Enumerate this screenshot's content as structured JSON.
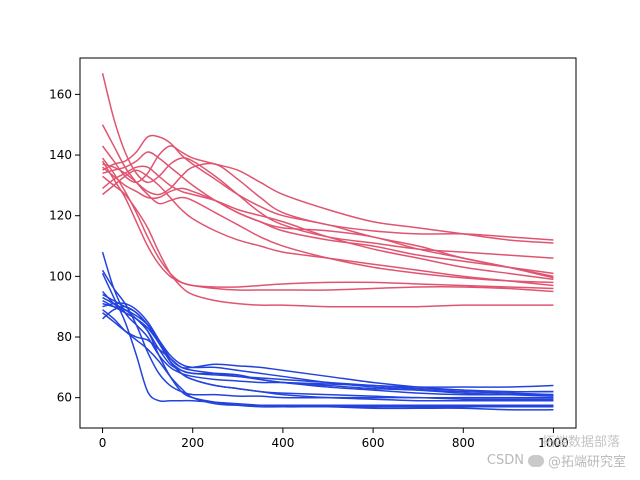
{
  "watermark": {
    "csdn": "CSDN",
    "account": "@拓端研究室",
    "wechat_name": "拓端数据部落",
    "icon": "wechat-icon"
  },
  "chart_data": {
    "type": "line",
    "title": "",
    "xlabel": "",
    "ylabel": "",
    "xlim": [
      -50,
      1050
    ],
    "ylim": [
      50,
      172
    ],
    "xticks": [
      0,
      200,
      400,
      600,
      800,
      1000
    ],
    "yticks": [
      60,
      80,
      100,
      120,
      140,
      160
    ],
    "grid": false,
    "legend": "none",
    "colors": {
      "group_a": "#e05470",
      "group_b": "#2343dc"
    },
    "x": [
      0,
      25,
      50,
      75,
      100,
      125,
      150,
      175,
      200,
      250,
      300,
      350,
      400,
      500,
      600,
      700,
      800,
      900,
      1000
    ],
    "series": [
      {
        "group": "group_a",
        "values": [
          167,
          152,
          141,
          134,
          131,
          133,
          137,
          139,
          138,
          133,
          127,
          121,
          117,
          113,
          111,
          109,
          108,
          107,
          106
        ]
      },
      {
        "group": "group_a",
        "values": [
          150,
          143,
          136,
          131,
          127,
          124,
          125,
          126,
          125,
          121,
          117,
          113,
          110,
          106,
          103,
          101,
          99.5,
          98.5,
          98
        ]
      },
      {
        "group": "group_a",
        "values": [
          143,
          138,
          133,
          131,
          134,
          140,
          143,
          141,
          139,
          137,
          135,
          131,
          127,
          122,
          118,
          116,
          114,
          112,
          111
        ]
      },
      {
        "group": "group_a",
        "values": [
          139,
          134,
          128,
          121,
          113,
          106,
          101,
          98,
          97,
          96,
          95.5,
          95.5,
          95.5,
          95.5,
          96,
          96.5,
          96.5,
          96,
          95
        ]
      },
      {
        "group": "group_a",
        "values": [
          138,
          132,
          126,
          118,
          110,
          104,
          100,
          98,
          97,
          96.5,
          96.5,
          97,
          97.5,
          98,
          98,
          97.5,
          97,
          96.5,
          96
        ]
      },
      {
        "group": "group_a",
        "values": [
          137,
          136,
          134,
          131,
          128,
          127,
          129,
          133,
          136,
          137,
          132,
          126,
          121,
          117,
          115,
          114,
          114,
          113,
          112
        ]
      },
      {
        "group": "group_a",
        "values": [
          136,
          133,
          130,
          128,
          126,
          126,
          128,
          129,
          128,
          125,
          121,
          118,
          115,
          112,
          110,
          107,
          105,
          103,
          101
        ]
      },
      {
        "group": "group_a",
        "values": [
          135,
          137,
          138,
          141,
          146,
          146,
          144,
          140,
          137,
          132,
          127,
          123,
          120,
          117,
          113,
          110,
          106,
          103,
          100
        ]
      },
      {
        "group": "group_a",
        "values": [
          134,
          135,
          136,
          138,
          141,
          139,
          136,
          133,
          130,
          125,
          121,
          118,
          116,
          115,
          113,
          109,
          106,
          103,
          99.5
        ]
      },
      {
        "group": "group_a",
        "values": [
          133,
          130,
          127,
          122,
          116,
          108,
          101,
          96.5,
          94,
          92,
          91,
          90.5,
          90.5,
          90,
          90,
          90,
          90.5,
          90.5,
          90.5
        ]
      },
      {
        "group": "group_a",
        "values": [
          127,
          130,
          133,
          135,
          133,
          130,
          126,
          122,
          119,
          115,
          112,
          110,
          108,
          106,
          104,
          102,
          100,
          98.5,
          97
        ]
      },
      {
        "group": "group_a",
        "values": [
          129,
          132,
          134,
          136,
          136,
          133,
          130,
          128,
          127,
          125,
          122,
          120,
          118,
          113,
          109,
          106,
          103,
          101,
          99
        ]
      },
      {
        "group": "group_b",
        "values": [
          108,
          96,
          88,
          84,
          80,
          74,
          70,
          68,
          67,
          66,
          65.5,
          65,
          65,
          64.5,
          64,
          63.5,
          63.5,
          63.5,
          64
        ]
      },
      {
        "group": "group_b",
        "values": [
          102,
          96,
          91,
          84,
          75,
          68,
          64,
          62,
          61,
          61,
          60.5,
          60.5,
          60,
          60,
          60,
          60,
          59.5,
          59.5,
          59.5
        ]
      },
      {
        "group": "group_b",
        "values": [
          101,
          93,
          85,
          74,
          62,
          59,
          59,
          59,
          59,
          58.5,
          58,
          57.5,
          57,
          57,
          56.5,
          56.5,
          56.5,
          56,
          56
        ]
      },
      {
        "group": "group_b",
        "values": [
          95,
          91,
          88,
          86,
          82,
          74,
          67,
          62,
          60,
          58.5,
          57.5,
          57,
          57,
          57,
          57,
          57,
          57,
          57,
          57
        ]
      },
      {
        "group": "group_b",
        "values": [
          94,
          92,
          90,
          88,
          84,
          79,
          74,
          71,
          70,
          70,
          69,
          68,
          67,
          65,
          63.5,
          62.5,
          61.5,
          61,
          60.5
        ]
      },
      {
        "group": "group_b",
        "values": [
          93,
          91,
          89,
          86,
          82,
          76,
          71,
          69,
          68,
          67.5,
          67,
          66.5,
          66,
          65,
          64,
          63,
          62.5,
          62,
          62
        ]
      },
      {
        "group": "group_b",
        "values": [
          92,
          90,
          88,
          86,
          83,
          78,
          72,
          69,
          68,
          68,
          67.5,
          66,
          65,
          63.5,
          62.5,
          61.5,
          61,
          61,
          61
        ]
      },
      {
        "group": "group_b",
        "values": [
          91,
          90,
          89,
          87,
          84,
          79,
          73,
          70,
          70,
          71,
          70.5,
          70,
          69,
          67,
          65,
          63.5,
          62.5,
          62,
          62
        ]
      },
      {
        "group": "group_b",
        "values": [
          90,
          91,
          91,
          89,
          85,
          79,
          72,
          68,
          66,
          64,
          63,
          62,
          61.5,
          61,
          60.5,
          60,
          60,
          60,
          60
        ]
      },
      {
        "group": "group_b",
        "values": [
          89,
          86,
          82,
          79,
          76,
          72,
          67,
          63,
          60,
          58,
          57.5,
          57.5,
          57.5,
          57.5,
          57.5,
          57.5,
          57.5,
          57.5,
          57.5
        ]
      },
      {
        "group": "group_b",
        "values": [
          88,
          85,
          82,
          80,
          79,
          76,
          73,
          70,
          69,
          68,
          67,
          66,
          65,
          64,
          63,
          62.5,
          62,
          61.5,
          61
        ]
      },
      {
        "group": "group_b",
        "values": [
          86,
          89,
          90,
          88,
          84,
          78,
          72,
          68,
          66,
          64,
          63,
          62,
          61,
          60,
          59.5,
          59,
          59,
          59,
          59
        ]
      }
    ]
  }
}
